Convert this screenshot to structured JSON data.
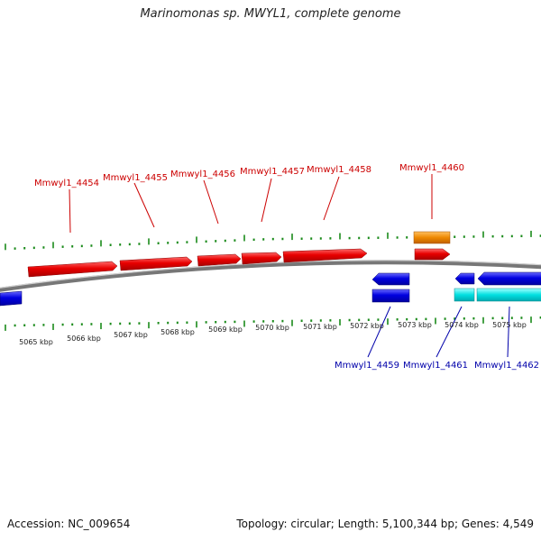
{
  "title": "Marinomonas sp. MWYL1, complete genome",
  "footer": {
    "accession": "Accession: NC_009654",
    "summary": "Topology: circular; Length: 5,100,344 bp; Genes: 4,549"
  },
  "colors": {
    "forward_gene": "#e00000",
    "reverse_gene": "#0000dd",
    "rna_gene": "#ee8800",
    "reverse_feature_cyan": "#00dddd",
    "backbone": "#888888",
    "tick": "#1a8a1a",
    "label_forward": "#cc0000",
    "label_reverse": "#0000aa"
  },
  "scale": {
    "labels": [
      "5065 kbp",
      "5066 kbp",
      "5067 kbp",
      "5068 kbp",
      "5069 kbp",
      "5070 kbp",
      "5071 kbp",
      "5072 kbp",
      "5073 kbp",
      "5074 kbp",
      "5075 kbp"
    ],
    "kbp": [
      5065,
      5066,
      5067,
      5068,
      5069,
      5070,
      5071,
      5072,
      5073,
      5074,
      5075
    ]
  },
  "forward_labels": [
    {
      "text": "Mmwyl1_4454"
    },
    {
      "text": "Mmwyl1_4455"
    },
    {
      "text": "Mmwyl1_4456"
    },
    {
      "text": "Mmwyl1_4457"
    },
    {
      "text": "Mmwyl1_4458"
    },
    {
      "text": "Mmwyl1_4460"
    }
  ],
  "reverse_labels": [
    {
      "text": "Mmwyl1_4459"
    },
    {
      "text": "Mmwyl1_4461"
    },
    {
      "text": "Mmwyl1_4462"
    }
  ]
}
